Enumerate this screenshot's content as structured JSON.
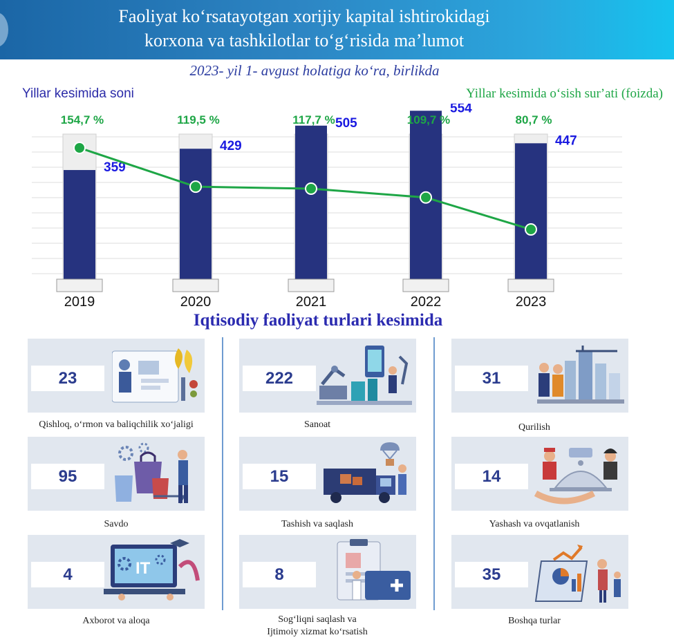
{
  "header": {
    "title_line1": "Faoliyat koʻrsatayotgan xorijiy kapital ishtirokidagi",
    "title_line2": "korxona va tashkilotlar toʻgʻrisida maʼlumot"
  },
  "subtitle": "2023- yil 1- avgust holatiga koʻra, birlikda",
  "chart_data": {
    "type": "bar",
    "categories": [
      "2019",
      "2020",
      "2021",
      "2022",
      "2023"
    ],
    "series": [
      {
        "name": "Yillar kesimida soni",
        "type": "bar",
        "values": [
          359,
          429,
          505,
          554,
          447
        ],
        "color": "#26337f"
      },
      {
        "name": "Yillar kesimida oʻsish surʼati (foizda)",
        "type": "line",
        "values": [
          154.7,
          119.5,
          117.7,
          109.7,
          80.7
        ],
        "color": "#1ea646"
      }
    ],
    "value_labels": [
      "359",
      "429",
      "505",
      "554",
      "447"
    ],
    "rate_labels": [
      "154,7 %",
      "119,5 %",
      "117,7 %",
      "109,7 %",
      "80,7 %"
    ],
    "left_label": "Yillar kesimida soni",
    "right_label": "Yillar kesimida oʻsish surʼati (foizda)",
    "ylim": [
      0,
      600
    ],
    "grid": true
  },
  "section_title": "Iqtisodiy faoliyat turlari kesimida",
  "activities": [
    {
      "value": "23",
      "label": "Qishloq, oʻrmon va baliqchilik xoʻjaligi",
      "icon": "agriculture-icon"
    },
    {
      "value": "222",
      "label": "Sanoat",
      "icon": "factory-icon"
    },
    {
      "value": "31",
      "label": "Qurilish",
      "icon": "construction-icon"
    },
    {
      "value": "95",
      "label": "Savdo",
      "icon": "shopping-icon"
    },
    {
      "value": "15",
      "label": "Tashish va saqlash",
      "icon": "transport-icon"
    },
    {
      "value": "14",
      "label": "Yashash va ovqatlanish",
      "icon": "hospitality-icon"
    },
    {
      "value": "4",
      "label": "Axborot va aloqa",
      "icon": "it-icon"
    },
    {
      "value": "8",
      "label_line1": "Sogʻliqni saqlash va",
      "label_line2": "Ijtimoiy xizmat koʻrsatish",
      "icon": "health-icon"
    },
    {
      "value": "35",
      "label": "Boshqa turlar",
      "icon": "statistics-icon"
    }
  ]
}
